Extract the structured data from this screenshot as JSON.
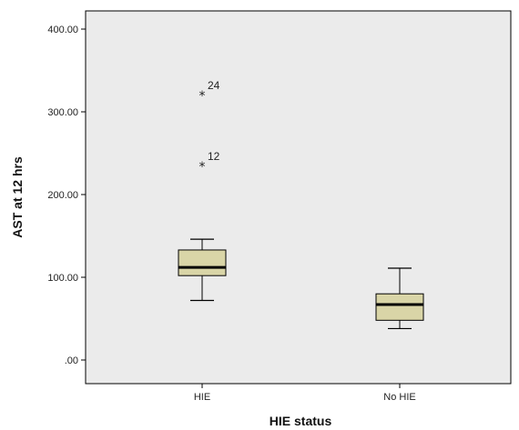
{
  "chart_data": {
    "type": "boxplot",
    "xlabel": "HIE status",
    "ylabel": "AST at 12 hrs",
    "ylim": [
      -30,
      420
    ],
    "yticks": [
      ".00",
      "100.00",
      "200.00",
      "300.00",
      "400.00"
    ],
    "ytick_values": [
      0,
      100,
      200,
      300,
      400
    ],
    "categories": [
      "HIE",
      "No HIE"
    ],
    "boxes": [
      {
        "category": "HIE",
        "min": 72,
        "q1": 102,
        "median": 112,
        "q3": 133,
        "max": 146,
        "outliers": [
          {
            "label": "24",
            "value": 320
          },
          {
            "label": "12",
            "value": 234
          }
        ]
      },
      {
        "category": "No HIE",
        "min": 38,
        "q1": 48,
        "median": 67,
        "q3": 80,
        "max": 111,
        "outliers": []
      }
    ],
    "box_fill": "#d9d5a7",
    "plot_background": "#ebebeb"
  }
}
